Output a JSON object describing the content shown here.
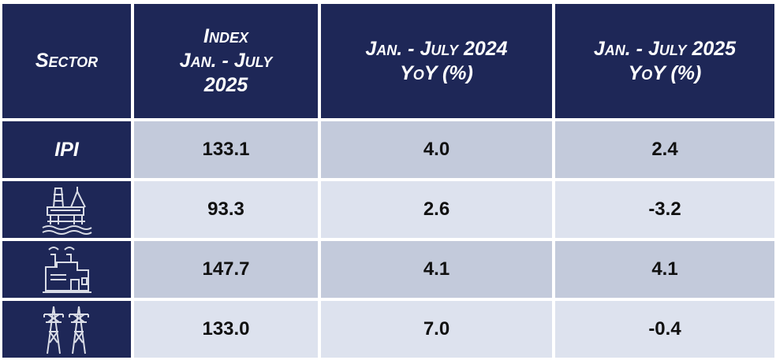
{
  "table": {
    "headers": [
      [
        "Sector"
      ],
      [
        "Index",
        "Jan. - July",
        "2025"
      ],
      [
        "Jan. - July 2024",
        "YoY (%)"
      ],
      [
        "Jan. - July 2025",
        "YoY (%)"
      ]
    ],
    "rows": [
      {
        "sector": "IPI",
        "values": [
          "133.1",
          "4.0",
          "2.4"
        ]
      },
      {
        "values": [
          "93.3",
          "2.6",
          "-3.2"
        ]
      },
      {
        "values": [
          "147.7",
          "4.1",
          "4.1"
        ]
      },
      {
        "values": [
          "133.0",
          "7.0",
          "-0.4"
        ]
      }
    ]
  }
}
